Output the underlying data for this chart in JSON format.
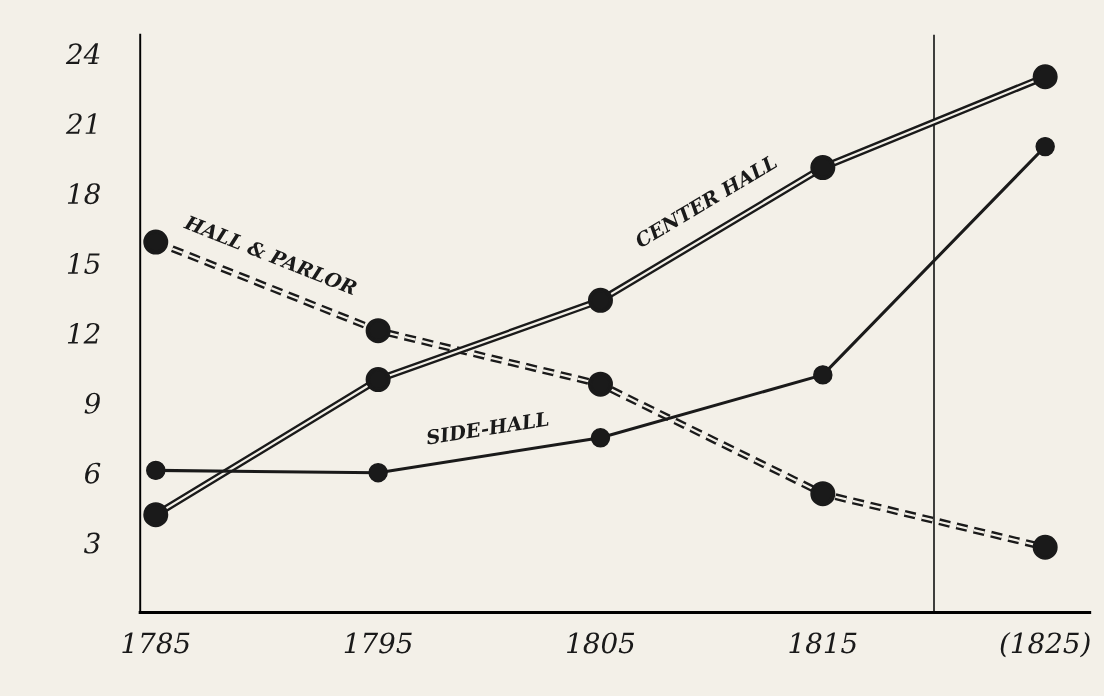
{
  "chart_data": {
    "type": "line",
    "x": [
      1785,
      1795,
      1805,
      1815,
      1825
    ],
    "series": [
      {
        "name": "HALL & PARLOR",
        "color": "#1a1a1a",
        "line_style": "dashed",
        "values": [
          15.9,
          12.1,
          9.8,
          5.1,
          2.8
        ]
      },
      {
        "name": "CENTER HALL",
        "color": "#1a1a1a",
        "line_style": "solid",
        "values": [
          4.2,
          10.0,
          13.4,
          19.1,
          23.0
        ]
      },
      {
        "name": "SIDE-HALL",
        "color": "#1a1a1a",
        "line_style": "solid",
        "values": [
          6.1,
          6.0,
          7.5,
          10.2,
          20.0
        ]
      }
    ],
    "xlim": [
      1784.3,
      1827
    ],
    "xticks": [
      1785,
      1795,
      1805,
      1815,
      {
        "value": 1825,
        "label": "(1825)"
      }
    ],
    "ylim": [
      0,
      24.8
    ],
    "yticks": [
      3,
      6,
      9,
      12,
      15,
      18,
      21,
      24
    ],
    "ref_lines": [
      {
        "axis": "x",
        "value": 1820,
        "color": "#1a1a1a"
      }
    ],
    "marker": "circle",
    "grid": false,
    "legend": false
  }
}
